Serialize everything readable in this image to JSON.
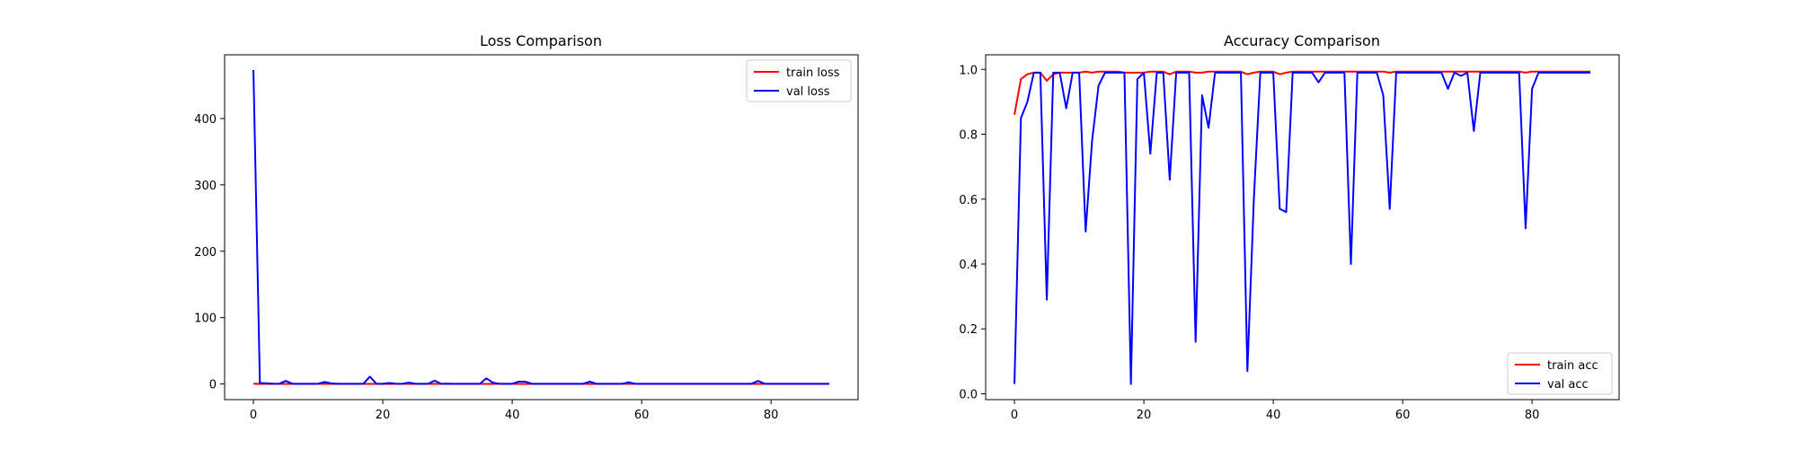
{
  "chart_data": [
    {
      "type": "line",
      "title": "Loss Comparison",
      "xlabel": "",
      "ylabel": "",
      "xlim": [
        -4.45,
        93.45
      ],
      "ylim": [
        -23.6,
        496.0
      ],
      "xticks": [
        0,
        20,
        40,
        60,
        80
      ],
      "yticks": [
        0,
        100,
        200,
        300,
        400
      ],
      "grid": false,
      "legend": "top-right",
      "series": [
        {
          "name": "train loss",
          "color": "#ff0000",
          "x": [
            0,
            1,
            2,
            3,
            4,
            5,
            6,
            7,
            8,
            9,
            10,
            11,
            12,
            13,
            14,
            15,
            16,
            17,
            18,
            19,
            20,
            21,
            22,
            23,
            24,
            25,
            26,
            27,
            28,
            29,
            30,
            31,
            32,
            33,
            34,
            35,
            36,
            37,
            38,
            39,
            40,
            41,
            42,
            43,
            44,
            45,
            46,
            47,
            48,
            49,
            50,
            51,
            52,
            53,
            54,
            55,
            56,
            57,
            58,
            59,
            60,
            61,
            62,
            63,
            64,
            65,
            66,
            67,
            68,
            69,
            70,
            71,
            72,
            73,
            74,
            75,
            76,
            77,
            78,
            79,
            80,
            81,
            82,
            83,
            84,
            85,
            86,
            87,
            88,
            89
          ],
          "values": [
            0.4,
            0.1,
            0.1,
            0.05,
            0.05,
            0.1,
            0.05,
            0.05,
            0.05,
            0.05,
            0.05,
            0.05,
            0.05,
            0.05,
            0.05,
            0.05,
            0.05,
            0.05,
            0.05,
            0.05,
            0.05,
            0.05,
            0.05,
            0.05,
            0.05,
            0.05,
            0.05,
            0.05,
            0.05,
            0.05,
            0.05,
            0.05,
            0.05,
            0.05,
            0.05,
            0.05,
            0.05,
            0.05,
            0.05,
            0.05,
            0.05,
            0.05,
            0.05,
            0.05,
            0.05,
            0.05,
            0.05,
            0.05,
            0.05,
            0.05,
            0.05,
            0.05,
            0.05,
            0.05,
            0.05,
            0.05,
            0.05,
            0.05,
            0.05,
            0.05,
            0.05,
            0.05,
            0.05,
            0.05,
            0.05,
            0.05,
            0.05,
            0.05,
            0.05,
            0.05,
            0.05,
            0.05,
            0.05,
            0.05,
            0.05,
            0.05,
            0.05,
            0.05,
            0.05,
            0.05,
            0.05,
            0.05,
            0.05,
            0.05,
            0.05,
            0.05,
            0.05,
            0.05,
            0.05,
            0.05
          ]
        },
        {
          "name": "val loss",
          "color": "#0000ff",
          "x": [
            0,
            1,
            2,
            3,
            4,
            5,
            6,
            7,
            8,
            9,
            10,
            11,
            12,
            13,
            14,
            15,
            16,
            17,
            18,
            19,
            20,
            21,
            22,
            23,
            24,
            25,
            26,
            27,
            28,
            29,
            30,
            31,
            32,
            33,
            34,
            35,
            36,
            37,
            38,
            39,
            40,
            41,
            42,
            43,
            44,
            45,
            46,
            47,
            48,
            49,
            50,
            51,
            52,
            53,
            54,
            55,
            56,
            57,
            58,
            59,
            60,
            61,
            62,
            63,
            64,
            65,
            66,
            67,
            68,
            69,
            70,
            71,
            72,
            73,
            74,
            75,
            76,
            77,
            78,
            79,
            80,
            81,
            82,
            83,
            84,
            85,
            86,
            87,
            88,
            89
          ],
          "values": [
            473,
            1.5,
            1.0,
            0.5,
            0.3,
            4.5,
            0.3,
            0.2,
            0.3,
            0.2,
            0.3,
            3.0,
            1.0,
            0.3,
            0.2,
            0.3,
            0.2,
            0.3,
            11.0,
            0.3,
            0.2,
            1.5,
            0.5,
            0.2,
            2.0,
            0.5,
            0.2,
            0.3,
            5.0,
            0.3,
            0.5,
            0.2,
            0.3,
            0.2,
            0.3,
            0.2,
            8.5,
            2.0,
            0.3,
            0.3,
            0.2,
            3.5,
            3.5,
            0.3,
            0.2,
            0.3,
            0.2,
            0.3,
            0.2,
            0.3,
            0.2,
            0.3,
            3.5,
            0.2,
            0.2,
            0.3,
            0.2,
            0.3,
            2.5,
            0.3,
            0.2,
            0.3,
            0.2,
            0.3,
            0.2,
            0.3,
            0.2,
            0.3,
            0.2,
            0.3,
            0.2,
            0.3,
            0.2,
            0.3,
            0.2,
            0.3,
            0.2,
            0.3,
            4.5,
            0.3,
            0.2,
            0.3,
            0.2,
            0.3,
            0.2,
            0.3,
            0.2,
            0.3,
            0.2,
            0.2
          ]
        }
      ]
    },
    {
      "type": "line",
      "title": "Accuracy Comparison",
      "xlabel": "",
      "ylabel": "",
      "xlim": [
        -4.45,
        93.45
      ],
      "ylim": [
        -0.018,
        1.045
      ],
      "xticks": [
        0,
        20,
        40,
        60,
        80
      ],
      "yticks": [
        0.0,
        0.2,
        0.4,
        0.6,
        0.8,
        1.0
      ],
      "grid": false,
      "legend": "bottom-right",
      "series": [
        {
          "name": "train acc",
          "color": "#ff0000",
          "x": [
            0,
            1,
            2,
            3,
            4,
            5,
            6,
            7,
            8,
            9,
            10,
            11,
            12,
            13,
            14,
            15,
            16,
            17,
            18,
            19,
            20,
            21,
            22,
            23,
            24,
            25,
            26,
            27,
            28,
            29,
            30,
            31,
            32,
            33,
            34,
            35,
            36,
            37,
            38,
            39,
            40,
            41,
            42,
            43,
            44,
            45,
            46,
            47,
            48,
            49,
            50,
            51,
            52,
            53,
            54,
            55,
            56,
            57,
            58,
            59,
            60,
            61,
            62,
            63,
            64,
            65,
            66,
            67,
            68,
            69,
            70,
            71,
            72,
            73,
            74,
            75,
            76,
            77,
            78,
            79,
            80,
            81,
            82,
            83,
            84,
            85,
            86,
            87,
            88,
            89
          ],
          "values": [
            0.86,
            0.97,
            0.985,
            0.99,
            0.99,
            0.965,
            0.985,
            0.99,
            0.99,
            0.99,
            0.99,
            0.993,
            0.99,
            0.993,
            0.993,
            0.993,
            0.993,
            0.99,
            0.99,
            0.99,
            0.99,
            0.993,
            0.993,
            0.993,
            0.985,
            0.993,
            0.993,
            0.993,
            0.99,
            0.99,
            0.993,
            0.993,
            0.993,
            0.993,
            0.993,
            0.993,
            0.985,
            0.99,
            0.993,
            0.993,
            0.993,
            0.985,
            0.99,
            0.993,
            0.993,
            0.993,
            0.993,
            0.993,
            0.993,
            0.993,
            0.993,
            0.993,
            0.993,
            0.993,
            0.993,
            0.993,
            0.993,
            0.993,
            0.99,
            0.993,
            0.993,
            0.993,
            0.993,
            0.993,
            0.993,
            0.993,
            0.993,
            0.993,
            0.993,
            0.993,
            0.993,
            0.993,
            0.993,
            0.993,
            0.993,
            0.993,
            0.993,
            0.993,
            0.993,
            0.99,
            0.993,
            0.993,
            0.993,
            0.993,
            0.993,
            0.993,
            0.993,
            0.993,
            0.993,
            0.993
          ]
        },
        {
          "name": "val acc",
          "color": "#0000ff",
          "x": [
            0,
            1,
            2,
            3,
            4,
            5,
            6,
            7,
            8,
            9,
            10,
            11,
            12,
            13,
            14,
            15,
            16,
            17,
            18,
            19,
            20,
            21,
            22,
            23,
            24,
            25,
            26,
            27,
            28,
            29,
            30,
            31,
            32,
            33,
            34,
            35,
            36,
            37,
            38,
            39,
            40,
            41,
            42,
            43,
            44,
            45,
            46,
            47,
            48,
            49,
            50,
            51,
            52,
            53,
            54,
            55,
            56,
            57,
            58,
            59,
            60,
            61,
            62,
            63,
            64,
            65,
            66,
            67,
            68,
            69,
            70,
            71,
            72,
            73,
            74,
            75,
            76,
            77,
            78,
            79,
            80,
            81,
            82,
            83,
            84,
            85,
            86,
            87,
            88,
            89
          ],
          "values": [
            0.03,
            0.85,
            0.9,
            0.99,
            0.99,
            0.29,
            0.99,
            0.99,
            0.88,
            0.99,
            0.99,
            0.5,
            0.78,
            0.95,
            0.99,
            0.99,
            0.99,
            0.99,
            0.03,
            0.97,
            0.99,
            0.74,
            0.99,
            0.99,
            0.66,
            0.99,
            0.99,
            0.99,
            0.16,
            0.92,
            0.82,
            0.99,
            0.99,
            0.99,
            0.99,
            0.99,
            0.07,
            0.6,
            0.99,
            0.99,
            0.99,
            0.57,
            0.56,
            0.99,
            0.99,
            0.99,
            0.99,
            0.96,
            0.99,
            0.99,
            0.99,
            0.99,
            0.4,
            0.99,
            0.99,
            0.99,
            0.99,
            0.92,
            0.57,
            0.99,
            0.99,
            0.99,
            0.99,
            0.99,
            0.99,
            0.99,
            0.99,
            0.94,
            0.99,
            0.98,
            0.99,
            0.81,
            0.99,
            0.99,
            0.99,
            0.99,
            0.99,
            0.99,
            0.99,
            0.51,
            0.94,
            0.99,
            0.99,
            0.99,
            0.99,
            0.99,
            0.99,
            0.99,
            0.99,
            0.99
          ]
        }
      ]
    }
  ]
}
